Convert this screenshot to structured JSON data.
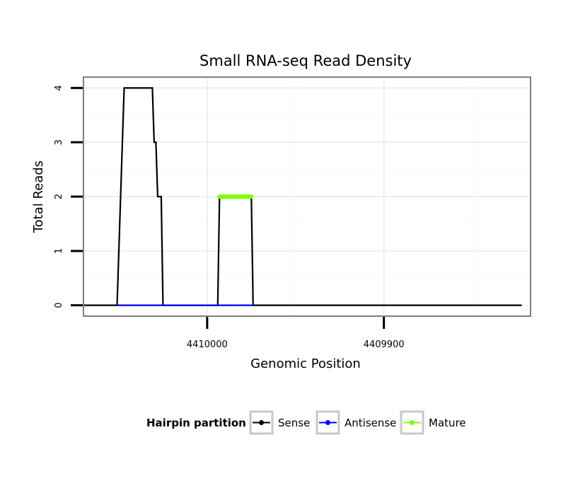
{
  "chart_data": {
    "type": "line",
    "title": "Small RNA-seq Read Density",
    "xlabel": "Genomic Position",
    "ylabel": "Total Reads",
    "x_reversed": true,
    "xlim": [
      4410070,
      4409817
    ],
    "ylim": [
      -0.2,
      4.2
    ],
    "x_ticks": [
      4410000,
      4409900
    ],
    "x_tick_labels": [
      "4410000",
      "4409900"
    ],
    "y_ticks": [
      0,
      1,
      2,
      3,
      4
    ],
    "y_tick_labels": [
      "0",
      "1",
      "2",
      "3",
      "4"
    ],
    "grid": true,
    "legend": {
      "title": "Hairpin partition",
      "placement": "bottom"
    },
    "series": [
      {
        "name": "Sense",
        "color": "#000000",
        "points": [
          [
            4410071,
            0
          ],
          [
            4410051,
            0
          ],
          [
            4410047,
            4
          ],
          [
            4410031,
            4
          ],
          [
            4410030,
            3
          ],
          [
            4410029,
            3
          ],
          [
            4410028,
            2
          ],
          [
            4410026,
            2
          ],
          [
            4410025,
            0
          ],
          [
            4410001,
            0
          ],
          [
            4409994,
            0
          ],
          [
            4409993,
            2
          ],
          [
            4409975,
            2
          ],
          [
            4409974,
            0
          ],
          [
            4409822,
            0
          ]
        ]
      },
      {
        "name": "Antisense",
        "color": "#0000ff",
        "points": [
          [
            4410051,
            0
          ],
          [
            4410025,
            0
          ],
          [
            4409994,
            0
          ],
          [
            4409974,
            0
          ]
        ]
      },
      {
        "name": "Mature",
        "color": "#7fff00",
        "points": [
          [
            4409993,
            2
          ],
          [
            4409975,
            2
          ]
        ]
      }
    ]
  }
}
